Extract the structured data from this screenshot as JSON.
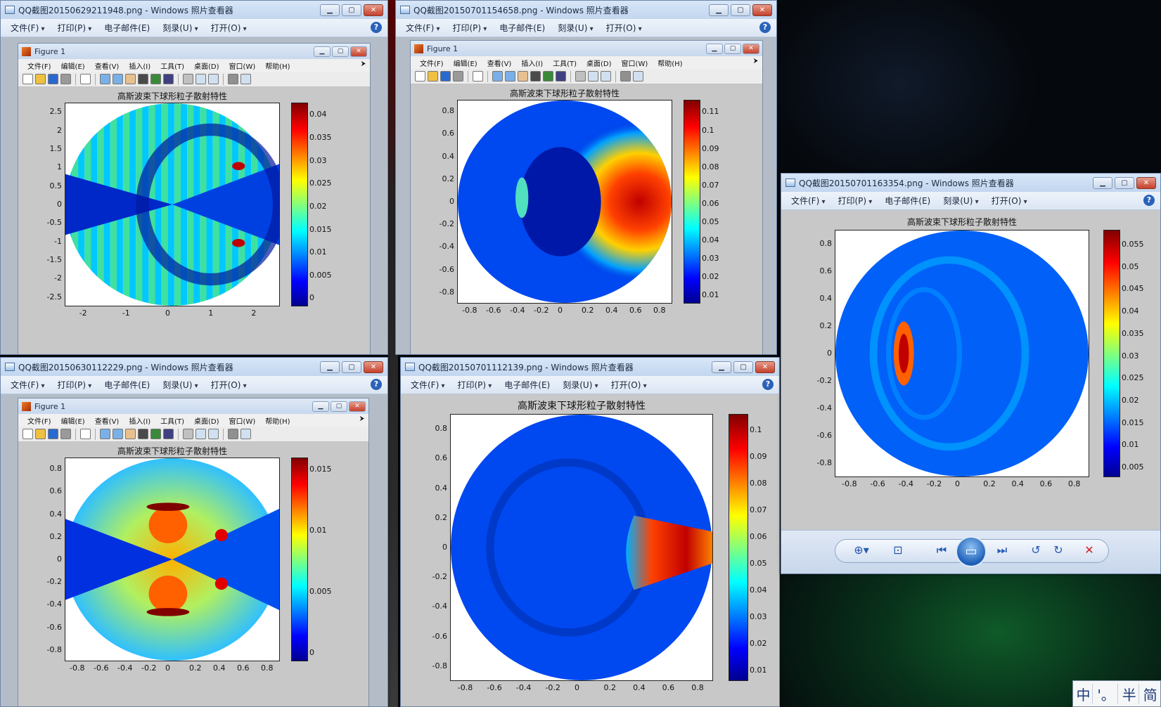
{
  "viewer_menu": {
    "file": "文件(F)",
    "print": "打印(P)",
    "email": "电子邮件(E)",
    "burn": "刻录(U)",
    "open": "打开(O)"
  },
  "matlab_menu": [
    "文件(F)",
    "编辑(E)",
    "查看(V)",
    "插入(I)",
    "工具(T)",
    "桌面(D)",
    "窗口(W)",
    "帮助(H)"
  ],
  "figure_name": "Figure 1",
  "plot_title": "高斯波束下球形粒子散射特性",
  "windows": [
    {
      "title": "QQ截图20150629211948.png - Windows 照片查看器",
      "plot": {
        "xticks": [
          "-2",
          "-1",
          "0",
          "1",
          "2"
        ],
        "yticks": [
          "2.5",
          "2",
          "1.5",
          "1",
          "0.5",
          "0",
          "-0.5",
          "-1",
          "-1.5",
          "-2",
          "-2.5"
        ],
        "cticks": [
          "0.04",
          "0.035",
          "0.03",
          "0.025",
          "0.02",
          "0.015",
          "0.01",
          "0.005",
          "0"
        ]
      }
    },
    {
      "title": "QQ截图20150701154658.png - Windows 照片查看器",
      "plot": {
        "xticks": [
          "-0.8",
          "-0.6",
          "-0.4",
          "-0.2",
          "0",
          "0.2",
          "0.4",
          "0.6",
          "0.8"
        ],
        "yticks": [
          "0.8",
          "0.6",
          "0.4",
          "0.2",
          "0",
          "-0.2",
          "-0.4",
          "-0.6",
          "-0.8"
        ],
        "cticks": [
          "0.11",
          "0.1",
          "0.09",
          "0.08",
          "0.07",
          "0.06",
          "0.05",
          "0.04",
          "0.03",
          "0.02",
          "0.01"
        ]
      }
    },
    {
      "title": "QQ截图20150630112229.png - Windows 照片查看器",
      "plot": {
        "xticks": [
          "-0.8",
          "-0.6",
          "-0.4",
          "-0.2",
          "0",
          "0.2",
          "0.4",
          "0.6",
          "0.8"
        ],
        "yticks": [
          "0.8",
          "0.6",
          "0.4",
          "0.2",
          "0",
          "-0.2",
          "-0.4",
          "-0.6",
          "-0.8"
        ],
        "cticks": [
          "0.015",
          "0.01",
          "0.005",
          "0"
        ]
      }
    },
    {
      "title": "QQ截图20150701112139.png - Windows 照片查看器",
      "plot": {
        "xticks": [
          "-0.8",
          "-0.6",
          "-0.4",
          "-0.2",
          "0",
          "0.2",
          "0.4",
          "0.6",
          "0.8"
        ],
        "yticks": [
          "0.8",
          "0.6",
          "0.4",
          "0.2",
          "0",
          "-0.2",
          "-0.4",
          "-0.6",
          "-0.8"
        ],
        "cticks": [
          "0.1",
          "0.09",
          "0.08",
          "0.07",
          "0.06",
          "0.05",
          "0.04",
          "0.03",
          "0.02",
          "0.01"
        ]
      }
    },
    {
      "title": "QQ截图20150701163354.png - Windows 照片查看器",
      "plot": {
        "xticks": [
          "-0.8",
          "-0.6",
          "-0.4",
          "-0.2",
          "0",
          "0.2",
          "0.4",
          "0.6",
          "0.8"
        ],
        "yticks": [
          "0.8",
          "0.6",
          "0.4",
          "0.2",
          "0",
          "-0.2",
          "-0.4",
          "-0.6",
          "-0.8"
        ],
        "cticks": [
          "0.055",
          "0.05",
          "0.045",
          "0.04",
          "0.035",
          "0.03",
          "0.025",
          "0.02",
          "0.015",
          "0.01",
          "0.005"
        ]
      }
    }
  ],
  "ime": [
    "中",
    "'。",
    "半",
    "简"
  ],
  "icons": {
    "zoom": "zoom-icon",
    "fit": "fit-icon",
    "prev": "previous-icon",
    "slideshow": "slideshow-icon",
    "next": "next-icon",
    "rotate_ccw": "rotate-left-icon",
    "rotate_cw": "rotate-right-icon",
    "delete": "delete-icon"
  },
  "colormap": [
    "#00008f",
    "#0000ff",
    "#00ffff",
    "#ffff00",
    "#ff0000",
    "#800000"
  ]
}
